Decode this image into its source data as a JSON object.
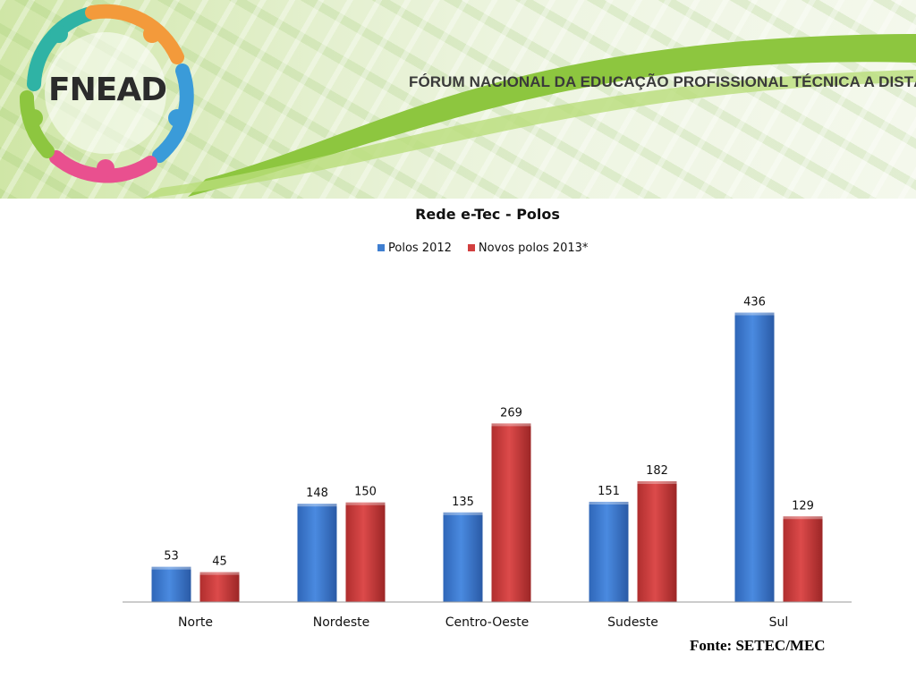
{
  "header": {
    "logo_text": "FNEAD",
    "title": "FÓRUM NACIONAL DA EDUCAÇÃO PROFISSIONAL TÉCNICA A DISTÂNCIA",
    "colors": {
      "green": "#8dc63f",
      "orange": "#f39a3b",
      "blue": "#3a9bd9",
      "pink": "#e9508f",
      "teal": "#2fb3a5"
    }
  },
  "chart_data": {
    "type": "bar",
    "title": "Rede e-Tec - Polos",
    "categories": [
      "Norte",
      "Nordeste",
      "Centro-Oeste",
      "Sudeste",
      "Sul"
    ],
    "series": [
      {
        "name": "Polos 2012",
        "values": [
          53,
          148,
          135,
          151,
          436
        ],
        "color": "#3f7fd1"
      },
      {
        "name": "Novos polos 2013*",
        "values": [
          45,
          150,
          269,
          182,
          129
        ],
        "color": "#d23f3f"
      }
    ],
    "ylim": [
      0,
      450
    ],
    "legend_position": "top",
    "grid": false,
    "data_labels": true
  },
  "source": "Fonte: SETEC/MEC"
}
